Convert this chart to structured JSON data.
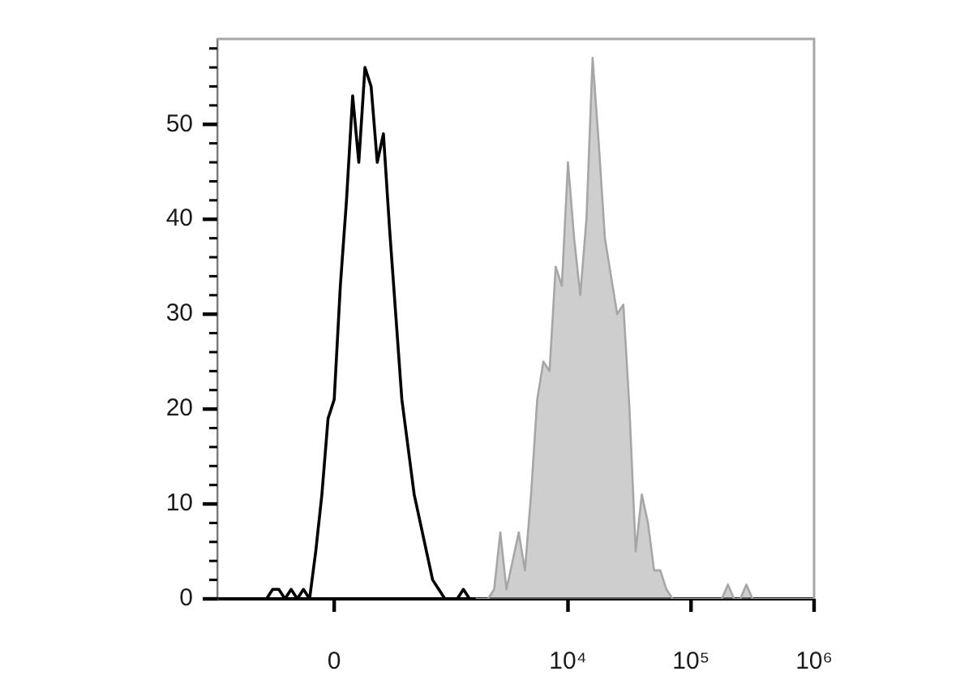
{
  "chart_data": {
    "type": "line",
    "marker": "none",
    "categories": [
      null,
      null,
      null,
      null,
      null,
      null,
      null,
      null,
      null,
      null,
      null,
      null,
      null,
      null,
      null,
      null,
      null,
      null,
      null,
      "0",
      null,
      null,
      null,
      null,
      null,
      null,
      null,
      null,
      null,
      null,
      null,
      null,
      null,
      null,
      null,
      null,
      null,
      null,
      null,
      null,
      null,
      null,
      null,
      null,
      null,
      null,
      null,
      null,
      null,
      null,
      null,
      null,
      null,
      null,
      null,
      null,
      null,
      "10⁴",
      null,
      null,
      null,
      null,
      null,
      null,
      null,
      null,
      null,
      null,
      null,
      null,
      null,
      null,
      null,
      null,
      null,
      null,
      null,
      "10⁵",
      null,
      null,
      null,
      null,
      null,
      null,
      null,
      null,
      null,
      null,
      null,
      null,
      null,
      null,
      null,
      null,
      null,
      null,
      null,
      "10⁶"
    ],
    "ylim": [
      0,
      59
    ],
    "yticks": [
      0,
      {
        "value": 2,
        "label": null
      },
      {
        "value": 4,
        "label": null
      },
      {
        "value": 6,
        "label": null
      },
      {
        "value": 8,
        "label": null
      },
      10,
      {
        "value": 12,
        "label": null
      },
      {
        "value": 14,
        "label": null
      },
      {
        "value": 16,
        "label": null
      },
      {
        "value": 18,
        "label": null
      },
      20,
      {
        "value": 22,
        "label": null
      },
      {
        "value": 24,
        "label": null
      },
      {
        "value": 26,
        "label": null
      },
      {
        "value": 28,
        "label": null
      },
      30,
      {
        "value": 32,
        "label": null
      },
      {
        "value": 34,
        "label": null
      },
      {
        "value": 36,
        "label": null
      },
      {
        "value": 38,
        "label": null
      },
      40,
      {
        "value": 42,
        "label": null
      },
      {
        "value": 44,
        "label": null
      },
      {
        "value": 46,
        "label": null
      },
      {
        "value": 48,
        "label": null
      },
      50,
      {
        "value": 52,
        "label": null
      },
      {
        "value": 54,
        "label": null
      },
      {
        "value": 56,
        "label": null
      },
      {
        "value": 58,
        "label": null
      }
    ],
    "series": [
      {
        "type": "area",
        "color": "#a6a6a6",
        "values": [
          null,
          null,
          null,
          null,
          null,
          null,
          null,
          null,
          null,
          null,
          null,
          null,
          null,
          null,
          null,
          null,
          null,
          null,
          null,
          null,
          null,
          null,
          null,
          null,
          null,
          null,
          null,
          null,
          null,
          null,
          null,
          null,
          null,
          null,
          null,
          null,
          null,
          null,
          null,
          null,
          null,
          null,
          0,
          0,
          0,
          1,
          7,
          1,
          4,
          7,
          3,
          11,
          21,
          25,
          24,
          35,
          33,
          46,
          38,
          32,
          40,
          57,
          48,
          38,
          34,
          30,
          31,
          20,
          5,
          11,
          8,
          3,
          3,
          1,
          0,
          0,
          0,
          0,
          0,
          0,
          0,
          0,
          0,
          1.5,
          0,
          0,
          1.5,
          0,
          0,
          0,
          0,
          0,
          0,
          0,
          0,
          0,
          0,
          0
        ]
      },
      {
        "type": "line",
        "color": "#000000",
        "values": [
          0,
          0,
          0,
          0,
          0,
          0,
          0,
          0,
          0,
          1,
          1,
          0,
          1,
          0,
          1,
          0,
          5,
          11,
          19,
          21,
          33,
          42,
          53,
          46,
          56,
          54,
          46,
          49,
          39,
          30,
          21,
          16,
          11,
          8,
          5,
          2,
          1,
          0,
          0,
          0,
          1,
          0,
          null,
          null,
          null,
          null,
          null,
          null,
          null,
          null,
          null,
          null,
          null,
          null,
          null,
          null,
          null,
          null,
          null,
          null,
          null,
          null,
          null,
          null,
          null,
          null,
          null,
          null,
          null,
          null,
          null,
          null,
          null,
          null,
          null,
          null,
          null,
          null,
          null,
          null,
          null,
          null,
          null,
          null,
          null,
          null,
          null,
          null,
          null,
          null,
          null,
          null,
          null,
          null,
          null,
          null,
          null,
          null
        ]
      }
    ]
  }
}
